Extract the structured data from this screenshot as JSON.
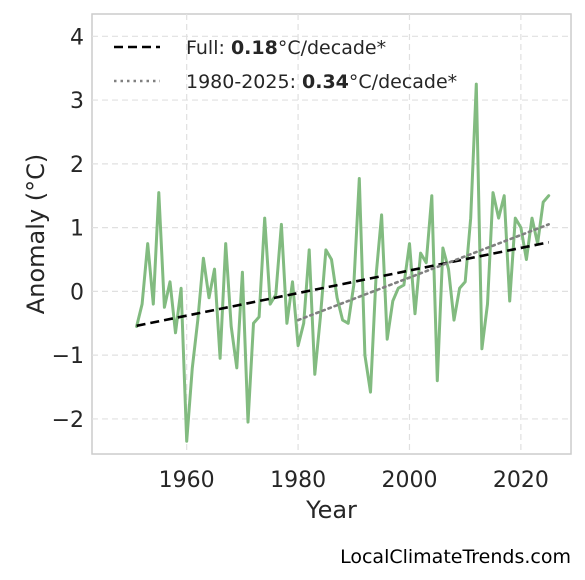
{
  "chart_data": {
    "type": "line",
    "xlabel": "Year",
    "ylabel": "Anomaly (°C)",
    "xlim": [
      1943,
      2029
    ],
    "ylim": [
      -2.55,
      4.35
    ],
    "xticks": [
      1960,
      1980,
      2000,
      2020
    ],
    "yticks": [
      -2,
      -1,
      0,
      1,
      2,
      3,
      4
    ],
    "ytick_labels": [
      "−2",
      "−1",
      "0",
      "1",
      "2",
      "3",
      "4"
    ],
    "grid": true,
    "legend_position": "top-left",
    "series": [
      {
        "type": "line",
        "color": "#82bb80",
        "x": [
          1951,
          1952,
          1953,
          1954,
          1955,
          1956,
          1957,
          1958,
          1959,
          1960,
          1961,
          1962,
          1963,
          1964,
          1965,
          1966,
          1967,
          1968,
          1969,
          1970,
          1971,
          1972,
          1973,
          1974,
          1975,
          1976,
          1977,
          1978,
          1979,
          1980,
          1981,
          1982,
          1983,
          1984,
          1985,
          1986,
          1987,
          1988,
          1989,
          1990,
          1991,
          1992,
          1993,
          1994,
          1995,
          1996,
          1997,
          1998,
          1999,
          2000,
          2001,
          2002,
          2003,
          2004,
          2005,
          2006,
          2007,
          2008,
          2009,
          2010,
          2011,
          2012,
          2013,
          2014,
          2015,
          2016,
          2017,
          2018,
          2019,
          2020,
          2021,
          2022,
          2023,
          2024,
          2025
        ],
        "y": [
          -0.55,
          -0.2,
          0.75,
          -0.2,
          1.55,
          -0.25,
          0.15,
          -0.65,
          0.05,
          -2.35,
          -1.2,
          -0.45,
          0.52,
          -0.1,
          0.35,
          -1.05,
          0.75,
          -0.55,
          -1.2,
          0.3,
          -2.05,
          -0.5,
          -0.4,
          1.15,
          -0.2,
          -0.05,
          1.05,
          -0.5,
          0.15,
          -0.85,
          -0.5,
          0.65,
          -1.3,
          -0.4,
          0.65,
          0.5,
          -0.1,
          -0.45,
          -0.5,
          0.1,
          1.77,
          -1.0,
          -1.58,
          0.25,
          1.2,
          -0.75,
          -0.15,
          0.05,
          0.1,
          0.75,
          -0.35,
          0.6,
          0.45,
          1.5,
          -1.4,
          0.68,
          0.35,
          -0.45,
          0.05,
          0.15,
          1.15,
          3.25,
          -0.9,
          -0.2,
          1.55,
          1.15,
          1.5,
          -0.15,
          1.15,
          1.0,
          0.5,
          1.15,
          0.75,
          1.4,
          1.5
        ]
      },
      {
        "type": "trend",
        "style": "dashed",
        "color": "#000000",
        "x": [
          1951,
          2025
        ],
        "y": [
          -0.54,
          0.77
        ]
      },
      {
        "type": "trend",
        "style": "dotted",
        "color": "#808080",
        "x": [
          1980,
          2025
        ],
        "y": [
          -0.45,
          1.05
        ]
      }
    ],
    "legend": [
      {
        "line_style": "dashed",
        "color": "#000000",
        "prefix": "Full: ",
        "value": "0.18",
        "suffix": "°C/decade*"
      },
      {
        "line_style": "dotted",
        "color": "#808080",
        "prefix": "1980-2025: ",
        "value": "0.34",
        "suffix": "°C/decade*"
      }
    ]
  },
  "credit": "LocalClimateTrends.com"
}
